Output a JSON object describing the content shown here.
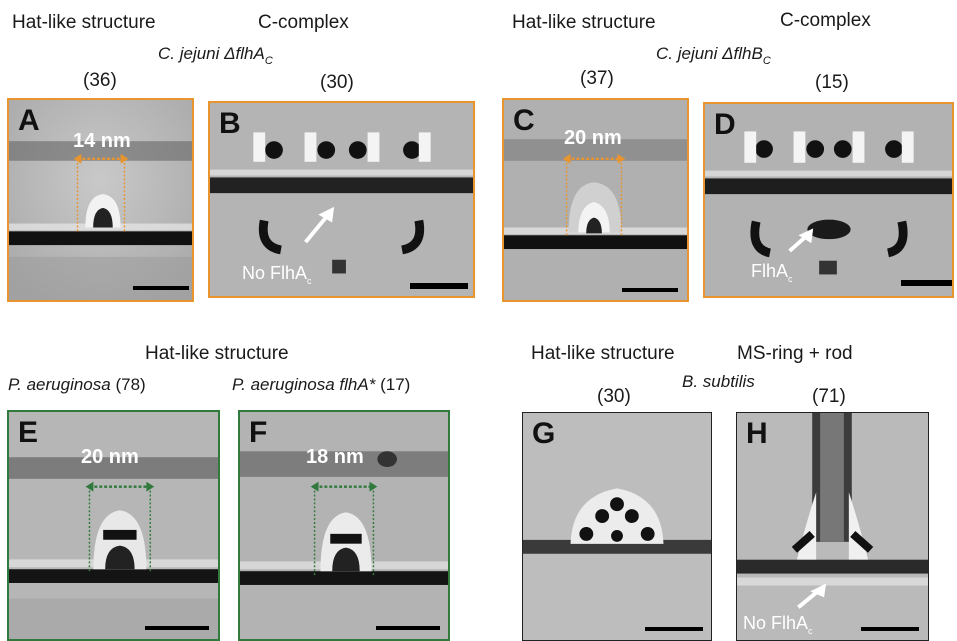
{
  "top_left": {
    "hat_label": "Hat-like structure",
    "ccomplex_label": "C-complex",
    "species": "C. jejuni ΔflhA",
    "species_sub": "C",
    "count_a": "(36)",
    "count_b": "(30)"
  },
  "top_right": {
    "hat_label": "Hat-like structure",
    "ccomplex_label": "C-complex",
    "species": "C. jejuni ΔflhB",
    "species_sub": "C",
    "count_c": "(37)",
    "count_d": "(15)"
  },
  "bottom_left": {
    "title": "Hat-like structure",
    "species_e": "P. aeruginosa",
    "count_e": "(78)",
    "species_f": "P. aeruginosa flhA*",
    "count_f": "(17)"
  },
  "bottom_right": {
    "hat_label": "Hat-like structure",
    "msring_label": "MS-ring + rod",
    "species": "B. subtilis",
    "count_g": "(30)",
    "count_h": "(71)"
  },
  "panels": {
    "A": {
      "letter": "A",
      "measure": "14 nm"
    },
    "B": {
      "letter": "B",
      "arrow_text": "No FlhA",
      "arrow_sub": "c"
    },
    "C": {
      "letter": "C",
      "measure": "20 nm"
    },
    "D": {
      "letter": "D",
      "arrow_text": "FlhA",
      "arrow_sub": "c"
    },
    "E": {
      "letter": "E",
      "measure": "20 nm"
    },
    "F": {
      "letter": "F",
      "measure": "18 nm"
    },
    "G": {
      "letter": "G"
    },
    "H": {
      "letter": "H",
      "arrow_text": "No FlhA",
      "arrow_sub": "c"
    }
  },
  "colors": {
    "orange_frame": "#e8952f",
    "green_frame": "#2f7a3c",
    "black_frame": "#222222"
  }
}
